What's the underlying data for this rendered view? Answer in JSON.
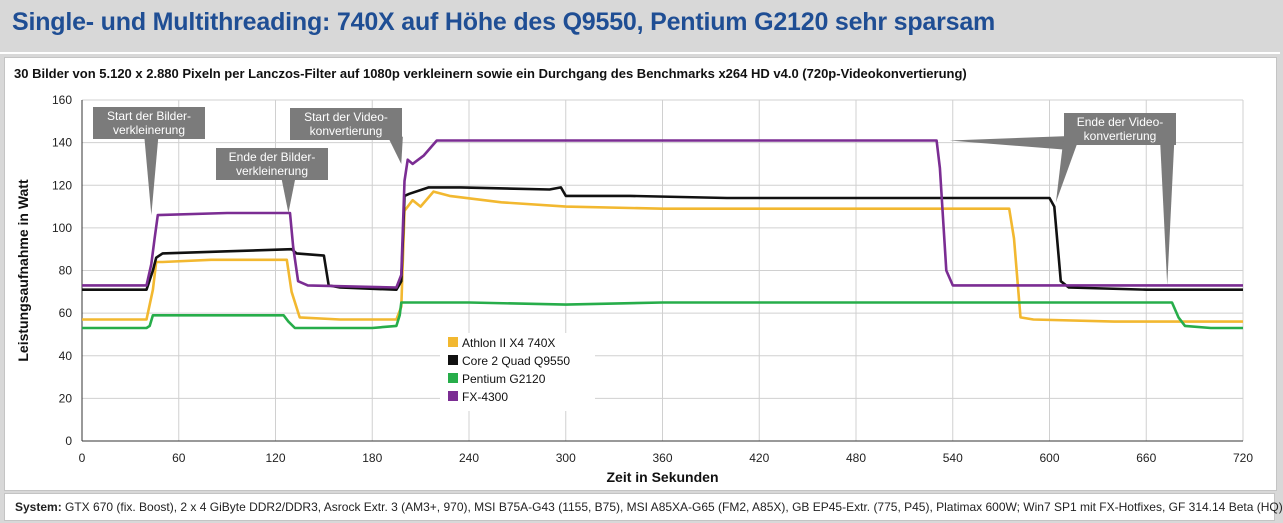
{
  "title": "Single- und Multithreading: 740X auf Höhe des Q9550, Pentium G2120 sehr sparsam",
  "footer": {
    "label": "System:",
    "text": " GTX 670 (fix. Boost), 2 x 4 GiByte DDR2/DDR3, Asrock Extr. 3 (AM3+, 970), MSI B75A-G43 (1155, B75), MSI A85XA-G65 (FM2, A85X), GB EP45-Extr. (775, P45), Platimax 600W; Win7 SP1 mit FX-Hotfixes, GF 314.14 Beta (HQ)"
  },
  "chart_data": {
    "type": "line",
    "title": "30 Bilder von 5.120 x 2.880 Pixeln per Lanczos-Filter auf 1080p verkleinern sowie ein Durchgang des Benchmarks x264 HD v4.0 (720p-Videokonvertierung)",
    "xlabel": "Zeit in Sekunden",
    "ylabel": "Leistungsaufnahme in Watt",
    "xlim": [
      0,
      720
    ],
    "ylim": [
      0,
      160
    ],
    "xticks": [
      "0",
      "60",
      "120",
      "180",
      "240",
      "300",
      "360",
      "420",
      "480",
      "540",
      "600",
      "660",
      "720"
    ],
    "yticks": [
      "0",
      "20",
      "40",
      "60",
      "80",
      "100",
      "120",
      "140",
      "160"
    ],
    "grid": true,
    "legend_position": "center-left",
    "series": [
      {
        "name": "Athlon II X4 740X",
        "color": "#f2b830",
        "points": [
          [
            0,
            57
          ],
          [
            40,
            57
          ],
          [
            44,
            71
          ],
          [
            46,
            84
          ],
          [
            50,
            84
          ],
          [
            80,
            85
          ],
          [
            127,
            85
          ],
          [
            130,
            70
          ],
          [
            135,
            58
          ],
          [
            160,
            57
          ],
          [
            195,
            57
          ],
          [
            198,
            63
          ],
          [
            200,
            108
          ],
          [
            205,
            113
          ],
          [
            210,
            110
          ],
          [
            218,
            117
          ],
          [
            228,
            115
          ],
          [
            260,
            112
          ],
          [
            300,
            110
          ],
          [
            360,
            109
          ],
          [
            420,
            109
          ],
          [
            480,
            109
          ],
          [
            530,
            109
          ],
          [
            575,
            109
          ],
          [
            578,
            95
          ],
          [
            582,
            58
          ],
          [
            590,
            57
          ],
          [
            640,
            56
          ],
          [
            680,
            56
          ],
          [
            700,
            56
          ],
          [
            720,
            56
          ]
        ]
      },
      {
        "name": "Core 2 Quad Q9550",
        "color": "#111111",
        "points": [
          [
            0,
            71
          ],
          [
            40,
            71
          ],
          [
            44,
            80
          ],
          [
            46,
            86
          ],
          [
            50,
            88
          ],
          [
            90,
            89
          ],
          [
            130,
            90
          ],
          [
            133,
            88
          ],
          [
            150,
            87
          ],
          [
            153,
            73
          ],
          [
            160,
            72
          ],
          [
            195,
            71
          ],
          [
            198,
            75
          ],
          [
            200,
            115
          ],
          [
            203,
            116
          ],
          [
            215,
            119
          ],
          [
            235,
            119
          ],
          [
            290,
            118
          ],
          [
            297,
            119
          ],
          [
            300,
            115
          ],
          [
            340,
            115
          ],
          [
            400,
            114
          ],
          [
            460,
            114
          ],
          [
            500,
            114
          ],
          [
            540,
            114
          ],
          [
            570,
            114
          ],
          [
            600,
            114
          ],
          [
            603,
            110
          ],
          [
            607,
            75
          ],
          [
            612,
            72
          ],
          [
            660,
            71
          ],
          [
            720,
            71
          ]
        ]
      },
      {
        "name": "Pentium G2120",
        "color": "#27ad4a",
        "points": [
          [
            0,
            53
          ],
          [
            40,
            53
          ],
          [
            42,
            54
          ],
          [
            44,
            59
          ],
          [
            60,
            59
          ],
          [
            125,
            59
          ],
          [
            128,
            56
          ],
          [
            132,
            53
          ],
          [
            180,
            53
          ],
          [
            195,
            54
          ],
          [
            197,
            59
          ],
          [
            198,
            65
          ],
          [
            240,
            65
          ],
          [
            300,
            64
          ],
          [
            360,
            65
          ],
          [
            420,
            65
          ],
          [
            480,
            65
          ],
          [
            540,
            65
          ],
          [
            600,
            65
          ],
          [
            660,
            65
          ],
          [
            676,
            65
          ],
          [
            680,
            58
          ],
          [
            684,
            54
          ],
          [
            700,
            53
          ],
          [
            720,
            53
          ]
        ]
      },
      {
        "name": "FX-4300",
        "color": "#7b2d93",
        "points": [
          [
            0,
            73
          ],
          [
            40,
            73
          ],
          [
            43,
            83
          ],
          [
            45,
            95
          ],
          [
            47,
            106
          ],
          [
            90,
            107
          ],
          [
            125,
            107
          ],
          [
            129,
            107
          ],
          [
            131,
            91
          ],
          [
            134,
            75
          ],
          [
            140,
            73
          ],
          [
            195,
            72
          ],
          [
            198,
            78
          ],
          [
            200,
            122
          ],
          [
            202,
            132
          ],
          [
            205,
            130
          ],
          [
            212,
            134
          ],
          [
            220,
            141
          ],
          [
            250,
            141
          ],
          [
            300,
            141
          ],
          [
            360,
            141
          ],
          [
            420,
            141
          ],
          [
            480,
            141
          ],
          [
            530,
            141
          ],
          [
            532,
            128
          ],
          [
            536,
            80
          ],
          [
            540,
            73
          ],
          [
            600,
            73
          ],
          [
            660,
            73
          ],
          [
            720,
            73
          ]
        ]
      }
    ],
    "annotations": [
      {
        "text": [
          "Start der Bilder-",
          "verkleinerung"
        ],
        "points_to": [
          43,
          106
        ]
      },
      {
        "text": [
          "Ende der Bilder-",
          "verkleinerung"
        ],
        "points_to": [
          128,
          107
        ]
      },
      {
        "text": [
          "Start der Video-",
          "konvertierung"
        ],
        "points_to": [
          198,
          130
        ]
      },
      {
        "text": [
          "Ende der Video-",
          "konvertierung"
        ],
        "points_to": [
          [
            538,
            141
          ],
          [
            604,
            112
          ],
          [
            673,
            73
          ]
        ]
      }
    ]
  }
}
